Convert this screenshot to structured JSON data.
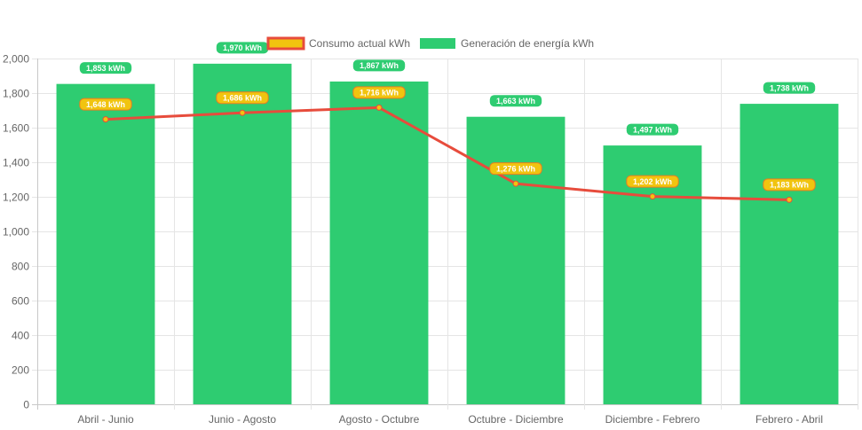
{
  "chart_data": {
    "type": "bar",
    "categories": [
      "Abril - Junio",
      "Junio - Agosto",
      "Agosto - Octubre",
      "Octubre - Diciembre",
      "Diciembre - Febrero",
      "Febrero - Abril"
    ],
    "series": [
      {
        "name": "Consumo actual kWh",
        "type": "line",
        "color": "#e74c3c",
        "point_color": "#f1c40f",
        "values": [
          1648,
          1686,
          1716,
          1276,
          1202,
          1183
        ],
        "labels": [
          "1,648 kWh",
          "1,686 kWh",
          "1,716 kWh",
          "1,276 kWh",
          "1,202 kWh",
          "1,183 kWh"
        ]
      },
      {
        "name": "Generación de energía kWh",
        "type": "bar",
        "color": "#2ecc71",
        "values": [
          1853,
          1970,
          1867,
          1663,
          1497,
          1738
        ],
        "labels": [
          "1,853 kWh",
          "1,970 kWh",
          "1,867 kWh",
          "1,663 kWh",
          "1,497 kWh",
          "1,738 kWh"
        ]
      }
    ],
    "ylim": [
      0,
      2000
    ],
    "yticks": [
      "0",
      "200",
      "400",
      "600",
      "800",
      "1,000",
      "1,200",
      "1,400",
      "1,600",
      "1,800",
      "2,000"
    ],
    "ytick_values": [
      0,
      200,
      400,
      600,
      800,
      1000,
      1200,
      1400,
      1600,
      1800,
      2000
    ],
    "grid": true,
    "legend_position": "top",
    "title": "",
    "xlabel": "",
    "ylabel": ""
  }
}
